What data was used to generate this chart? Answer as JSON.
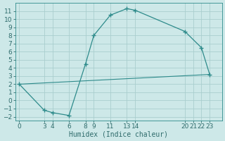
{
  "xlabel": "Humidex (Indice chaleur)",
  "curve_x": [
    0,
    3,
    4,
    6,
    8,
    9,
    11,
    13,
    14,
    20,
    22,
    23
  ],
  "curve_y": [
    2.0,
    -1.2,
    -1.5,
    -1.85,
    4.5,
    8.0,
    10.5,
    11.3,
    11.1,
    8.5,
    6.5,
    3.2
  ],
  "line_x": [
    0,
    23
  ],
  "line_y": [
    2.0,
    3.2
  ],
  "line_color": "#2e8b8b",
  "curve_color": "#2e8b8b",
  "bg_color": "#cde8e8",
  "grid_color": "#aacece",
  "tick_color": "#2e6b6b",
  "spine_color": "#2e8b8b",
  "xlim": [
    -0.5,
    24.5
  ],
  "ylim": [
    -2.5,
    12.0
  ],
  "xticks": [
    0,
    3,
    4,
    6,
    8,
    9,
    11,
    13,
    14,
    20,
    21,
    22,
    23
  ],
  "yticks": [
    -2,
    -1,
    0,
    1,
    2,
    3,
    4,
    5,
    6,
    7,
    8,
    9,
    10,
    11
  ],
  "xlabel_fontsize": 7,
  "tick_fontsize": 6.5
}
